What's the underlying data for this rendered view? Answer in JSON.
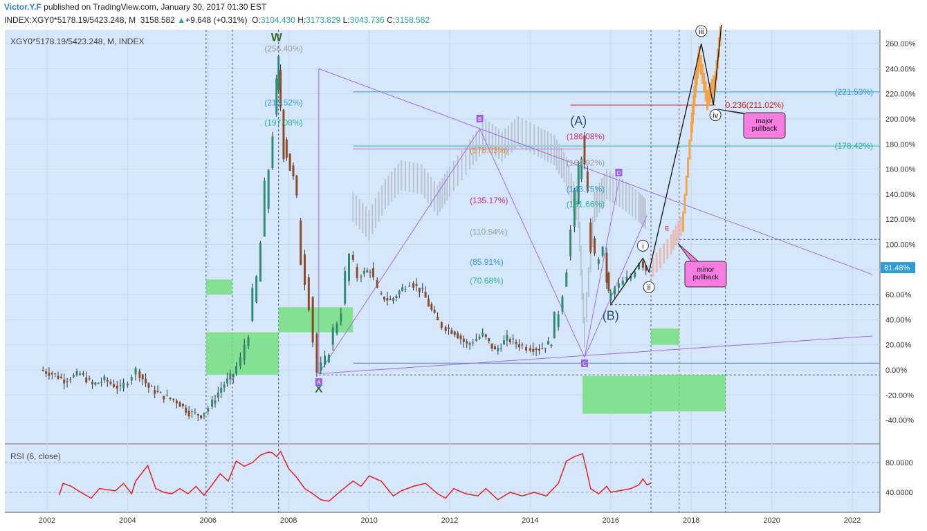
{
  "header": {
    "author": "Victor.Y.F",
    "published": "published on TradingView.com, January 30, 2017 01:30 EST",
    "symbol": "INDEX:XGY0*5178.19/5423.248, M",
    "last": "3158.582",
    "change": "+9.648 (+0.31%)",
    "o_label": "O:",
    "o_value": "3104.430",
    "h_label": "H:",
    "h_value": "3173.829",
    "l_label": "L:",
    "l_value": "3043.736",
    "c_label": "C:",
    "c_value": "3158.582"
  },
  "legend": {
    "main": "XGY0*5178.19/5423.248, M, INDEX",
    "rsi": "RSI (6, close)"
  },
  "colors": {
    "bg": "#d7e7fb",
    "up": "#2e8b6f",
    "down": "#8b4a2a",
    "rsi": "#e02020",
    "triangle": "#9b6fe0",
    "zone": "#6fe07a",
    "orange": "#f2a040",
    "label_bg": "#f77ee0"
  },
  "chart_data": {
    "type": "candlestick",
    "x_ticks": [
      "2002",
      "2004",
      "2006",
      "2008",
      "2010",
      "2012",
      "2014",
      "2016",
      "2018",
      "2020",
      "2022"
    ],
    "y_ticks": [
      "260.00%",
      "240.00%",
      "220.00%",
      "200.00%",
      "180.00%",
      "160.00%",
      "140.00%",
      "120.00%",
      "100.00%",
      "80.00%",
      "60.00%",
      "40.00%",
      "20.00%",
      "0.00%",
      "-20.00%",
      "-40.00%"
    ],
    "ylim": [
      -50,
      270
    ],
    "xlim": [
      2000.9,
      2022.5
    ],
    "last_value_label": "81.48%",
    "price": [
      [
        2001.9,
        0
      ],
      [
        2002.2,
        -3
      ],
      [
        2002.5,
        -8
      ],
      [
        2002.9,
        -3
      ],
      [
        2003.2,
        -12
      ],
      [
        2003.5,
        -8
      ],
      [
        2003.9,
        -15
      ],
      [
        2004.1,
        -8
      ],
      [
        2004.3,
        0
      ],
      [
        2004.6,
        -14
      ],
      [
        2004.9,
        -20
      ],
      [
        2005.3,
        -25
      ],
      [
        2005.6,
        -34
      ],
      [
        2005.9,
        -36
      ],
      [
        2006.1,
        -30
      ],
      [
        2006.4,
        -14
      ],
      [
        2006.7,
        -3
      ],
      [
        2006.9,
        8
      ],
      [
        2007.1,
        35
      ],
      [
        2007.3,
        70
      ],
      [
        2007.5,
        130
      ],
      [
        2007.7,
        200
      ],
      [
        2007.8,
        240
      ],
      [
        2007.95,
        185
      ],
      [
        2008.2,
        150
      ],
      [
        2008.4,
        95
      ],
      [
        2008.6,
        60
      ],
      [
        2008.8,
        -2
      ],
      [
        2009.0,
        8
      ],
      [
        2009.2,
        30
      ],
      [
        2009.4,
        50
      ],
      [
        2009.6,
        90
      ],
      [
        2009.8,
        75
      ],
      [
        2010.1,
        80
      ],
      [
        2010.3,
        60
      ],
      [
        2010.6,
        55
      ],
      [
        2010.9,
        65
      ],
      [
        2011.1,
        70
      ],
      [
        2011.4,
        62
      ],
      [
        2011.7,
        42
      ],
      [
        2011.9,
        35
      ],
      [
        2012.2,
        30
      ],
      [
        2012.5,
        20
      ],
      [
        2012.9,
        28
      ],
      [
        2013.2,
        15
      ],
      [
        2013.5,
        25
      ],
      [
        2013.8,
        20
      ],
      [
        2014.0,
        18
      ],
      [
        2014.3,
        17
      ],
      [
        2014.6,
        22
      ],
      [
        2014.8,
        50
      ],
      [
        2015.0,
        90
      ],
      [
        2015.2,
        130
      ],
      [
        2015.35,
        183
      ],
      [
        2015.5,
        120
      ],
      [
        2015.7,
        85
      ],
      [
        2015.9,
        95
      ],
      [
        2016.0,
        55
      ],
      [
        2016.2,
        65
      ],
      [
        2016.4,
        70
      ],
      [
        2016.6,
        75
      ],
      [
        2016.8,
        87
      ],
      [
        2016.95,
        80
      ]
    ],
    "projection": [
      [
        2017.05,
        82
      ],
      [
        2017.5,
        100
      ],
      [
        2017.8,
        118
      ],
      [
        2018.0,
        190
      ],
      [
        2018.1,
        225
      ],
      [
        2018.2,
        250
      ],
      [
        2018.4,
        215
      ],
      [
        2018.6,
        230
      ],
      [
        2018.75,
        275
      ]
    ],
    "ghost": [
      [
        2009.6,
        130
      ],
      [
        2010.0,
        115
      ],
      [
        2010.4,
        140
      ],
      [
        2010.8,
        155
      ],
      [
        2011.3,
        152
      ],
      [
        2011.7,
        135
      ],
      [
        2012.0,
        150
      ],
      [
        2012.5,
        172
      ],
      [
        2012.9,
        188
      ],
      [
        2013.3,
        178
      ],
      [
        2013.7,
        190
      ],
      [
        2014.2,
        182
      ],
      [
        2014.6,
        175
      ],
      [
        2014.9,
        158
      ],
      [
        2015.2,
        125
      ],
      [
        2015.35,
        30
      ],
      [
        2015.6,
        130
      ],
      [
        2015.9,
        148
      ],
      [
        2016.3,
        140
      ],
      [
        2016.7,
        130
      ],
      [
        2016.9,
        123
      ]
    ],
    "rsi": [
      [
        2002.3,
        36
      ],
      [
        2002.4,
        52
      ],
      [
        2002.6,
        48
      ],
      [
        2002.9,
        38
      ],
      [
        2003.1,
        32
      ],
      [
        2003.3,
        45
      ],
      [
        2003.7,
        42
      ],
      [
        2003.9,
        52
      ],
      [
        2004.1,
        38
      ],
      [
        2004.2,
        55
      ],
      [
        2004.5,
        76
      ],
      [
        2004.7,
        45
      ],
      [
        2004.9,
        40
      ],
      [
        2005.1,
        38
      ],
      [
        2005.3,
        45
      ],
      [
        2005.5,
        38
      ],
      [
        2005.7,
        48
      ],
      [
        2005.9,
        36
      ],
      [
        2006.1,
        50
      ],
      [
        2006.3,
        65
      ],
      [
        2006.5,
        55
      ],
      [
        2006.7,
        82
      ],
      [
        2006.9,
        75
      ],
      [
        2007.1,
        80
      ],
      [
        2007.3,
        90
      ],
      [
        2007.5,
        94
      ],
      [
        2007.6,
        93
      ],
      [
        2007.7,
        88
      ],
      [
        2007.8,
        95
      ],
      [
        2008.0,
        72
      ],
      [
        2008.2,
        60
      ],
      [
        2008.4,
        45
      ],
      [
        2008.6,
        38
      ],
      [
        2008.8,
        30
      ],
      [
        2009.0,
        28
      ],
      [
        2009.3,
        42
      ],
      [
        2009.6,
        55
      ],
      [
        2009.8,
        48
      ],
      [
        2010.0,
        62
      ],
      [
        2010.3,
        55
      ],
      [
        2010.6,
        35
      ],
      [
        2010.8,
        42
      ],
      [
        2011.1,
        48
      ],
      [
        2011.4,
        52
      ],
      [
        2011.7,
        38
      ],
      [
        2011.9,
        32
      ],
      [
        2012.1,
        45
      ],
      [
        2012.4,
        38
      ],
      [
        2012.7,
        35
      ],
      [
        2012.9,
        45
      ],
      [
        2013.2,
        30
      ],
      [
        2013.5,
        40
      ],
      [
        2013.8,
        35
      ],
      [
        2014.1,
        40
      ],
      [
        2014.4,
        35
      ],
      [
        2014.7,
        52
      ],
      [
        2014.9,
        82
      ],
      [
        2015.1,
        88
      ],
      [
        2015.3,
        92
      ],
      [
        2015.4,
        70
      ],
      [
        2015.5,
        45
      ],
      [
        2015.7,
        38
      ],
      [
        2015.9,
        48
      ],
      [
        2016.0,
        40
      ],
      [
        2016.2,
        42
      ],
      [
        2016.5,
        45
      ],
      [
        2016.7,
        50
      ],
      [
        2016.8,
        58
      ],
      [
        2016.9,
        50
      ],
      [
        2017.0,
        52
      ]
    ],
    "rsi_ticks": [
      "80.0000",
      "40.0000"
    ],
    "rsi_ylim": [
      20,
      105
    ],
    "hlines": [
      {
        "y": 221.53,
        "label": "(221.53%)",
        "color": "#2e9bcf"
      },
      {
        "y": 178.42,
        "label": "(178.42%)",
        "color": "#26b39a"
      },
      {
        "y": 5.4,
        "label": "",
        "color": "#5a7cc7"
      }
    ],
    "fib_labels": [
      {
        "t": "(256.40%)",
        "c": "#999999"
      },
      {
        "t": "(213.52%)",
        "c": "#2e9bcf"
      },
      {
        "t": "(197.08%)",
        "c": "#26b39a"
      },
      {
        "t": "(186.08%)",
        "c": "#d0306f"
      },
      {
        "t": "(175.03%)",
        "c": "#e89020"
      },
      {
        "t": "(164.92%)",
        "c": "#999999"
      },
      {
        "t": "(143.75%)",
        "c": "#2e9bcf"
      },
      {
        "t": "(131.66%)",
        "c": "#26b39a"
      },
      {
        "t": "(135.17%)",
        "c": "#c0306f"
      },
      {
        "t": "(110.54%)",
        "c": "#999999"
      },
      {
        "t": "(85.91%)",
        "c": "#2e9bcf"
      },
      {
        "t": "(70.68%)",
        "c": "#26b39a"
      },
      {
        "t": "0.236(211.02%)",
        "c": "#d02020"
      }
    ],
    "wave_labels": [
      "W",
      "X",
      "(A)",
      "(B)",
      "A",
      "B",
      "C",
      "D",
      "E",
      "i",
      "ii",
      "iii",
      "iv"
    ],
    "notes": [
      "major pullback",
      "minor pullback"
    ]
  }
}
